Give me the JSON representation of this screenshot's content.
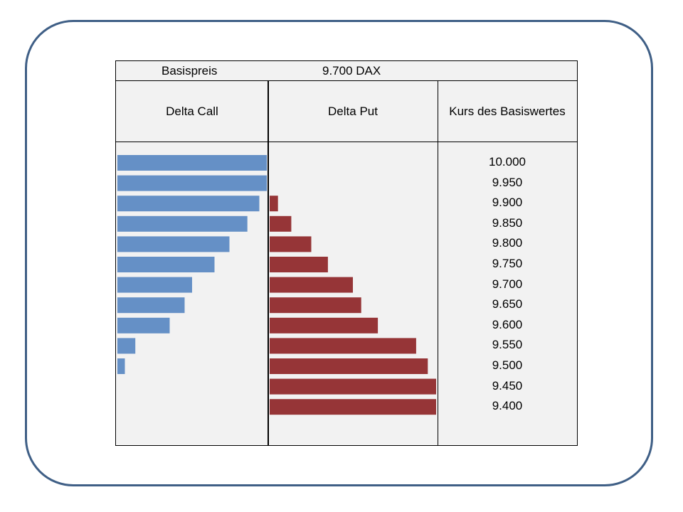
{
  "header": {
    "basispreis_label": "Basispreis",
    "basispreis_value": "9.700 DAX"
  },
  "columns": {
    "call": "Delta Call",
    "put": "Delta Put",
    "kurs": "Kurs des Basiswertes"
  },
  "colors": {
    "call": "#6590c6",
    "put": "#963537",
    "frame": "#3f5f86",
    "table_bg": "#f2f2f2"
  },
  "chart_data": {
    "type": "bar",
    "orientation": "horizontal",
    "categories": [
      "10.000",
      "9.950",
      "9.900",
      "9.850",
      "9.800",
      "9.750",
      "9.700",
      "9.650",
      "9.600",
      "9.550",
      "9.500",
      "9.450",
      "9.400"
    ],
    "series": [
      {
        "name": "Delta Call",
        "values": [
          1.0,
          1.0,
          0.95,
          0.87,
          0.75,
          0.65,
          0.5,
          0.45,
          0.35,
          0.12,
          0.05,
          0.0,
          0.0
        ]
      },
      {
        "name": "Delta Put",
        "values": [
          0.0,
          0.0,
          -0.05,
          -0.13,
          -0.25,
          -0.35,
          -0.5,
          -0.55,
          -0.65,
          -0.88,
          -0.95,
          -1.0,
          -1.0
        ]
      }
    ]
  }
}
